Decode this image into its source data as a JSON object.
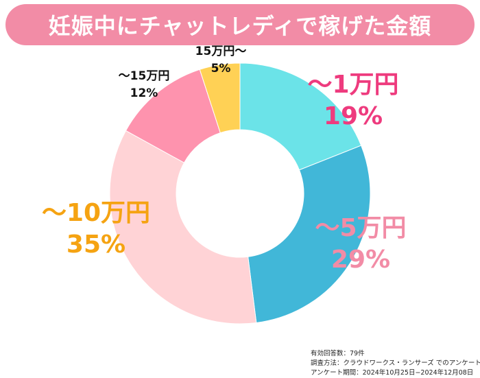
{
  "title": "妊娠中にチャットレディで稼げた金額",
  "chart_data": {
    "type": "pie",
    "style": "donut",
    "categories": [
      "～1万円",
      "～5万円",
      "～10万円",
      "～15万円",
      "15万円～"
    ],
    "values": [
      19,
      29,
      35,
      12,
      5
    ],
    "value_labels": [
      "19%",
      "29%",
      "35%",
      "12%",
      "5%"
    ],
    "colors": [
      "#6be3e8",
      "#41b7d8",
      "#ffd3d6",
      "#fe93ae",
      "#ffd155"
    ],
    "label_colors": [
      "#ee3b7e",
      "#f28ca6",
      "#f5a312",
      "#111111",
      "#111111"
    ]
  },
  "notes": [
    "有効回答数：79件",
    "調査方法：クラウドワークス・ランサーズ でのアンケート",
    "アンケート期間：2024年10月25日−2024年12月08日"
  ]
}
